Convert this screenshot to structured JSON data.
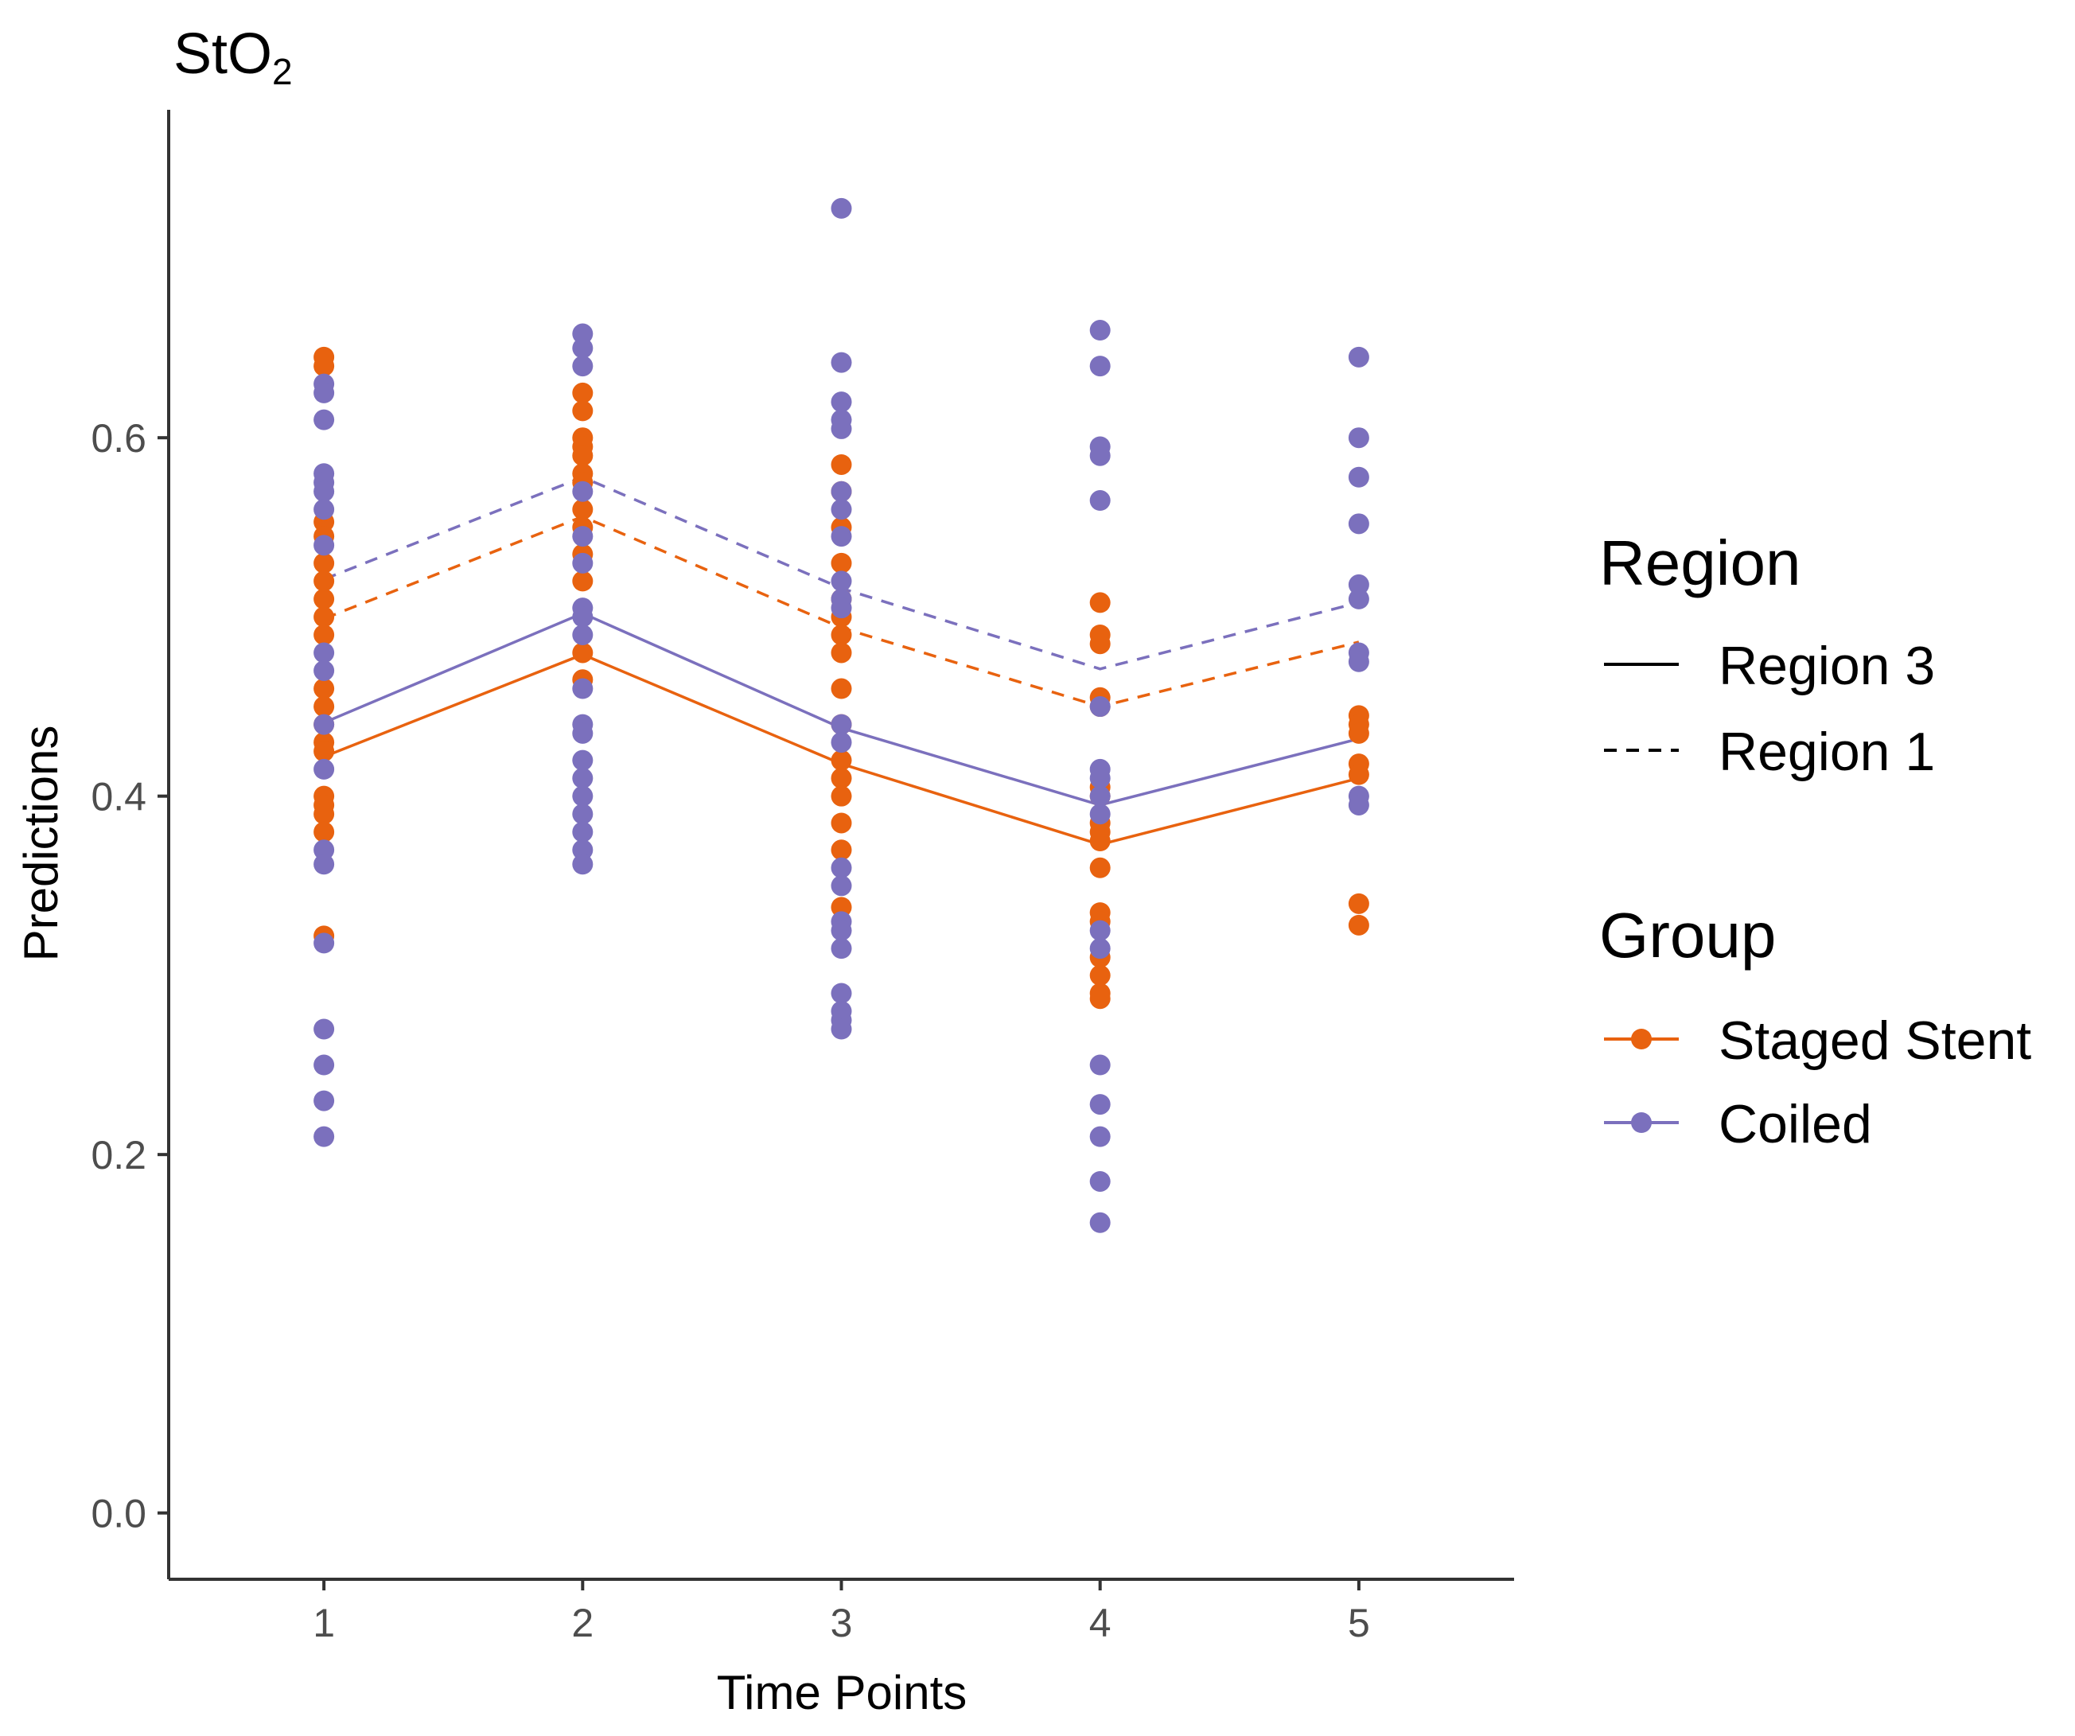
{
  "chart_data": {
    "type": "line",
    "title": "StO",
    "title_subscript": "2",
    "xlabel": "Time Points",
    "ylabel": "Predictions",
    "x": [
      1,
      2,
      3,
      4,
      5
    ],
    "xlim": [
      0.4,
      5.6
    ],
    "ylim": [
      -0.037,
      0.783
    ],
    "yticks": [
      0.0,
      0.2,
      0.4,
      0.6
    ],
    "ytick_labels": [
      "0.0",
      "0.2",
      "0.4",
      "0.6"
    ],
    "xtick_labels": [
      "1",
      "2",
      "3",
      "4",
      "5"
    ],
    "grid": false,
    "colors": {
      "staged_stent": "#e8620f",
      "coiled": "#7b70bd",
      "axis": "#333333"
    },
    "series": [
      {
        "name": "Staged Stent - Region 3",
        "group": "Staged Stent",
        "region": "Region 3",
        "color": "#e8620f",
        "dash": "solid",
        "values": [
          0.422,
          0.479,
          0.418,
          0.373,
          0.41
        ]
      },
      {
        "name": "Coiled - Region 3",
        "group": "Coiled",
        "region": "Region 3",
        "color": "#7b70bd",
        "dash": "solid",
        "values": [
          0.441,
          0.502,
          0.438,
          0.395,
          0.432
        ]
      },
      {
        "name": "Staged Stent - Region 1",
        "group": "Staged Stent",
        "region": "Region 1",
        "color": "#e8620f",
        "dash": "dashed",
        "values": [
          0.499,
          0.556,
          0.494,
          0.45,
          0.486
        ]
      },
      {
        "name": "Coiled - Region 1",
        "group": "Coiled",
        "region": "Region 1",
        "color": "#7b70bd",
        "dash": "dashed",
        "values": [
          0.521,
          0.578,
          0.516,
          0.471,
          0.508
        ]
      }
    ],
    "scatter": [
      {
        "group": "Staged Stent",
        "color": "#e8620f",
        "points": [
          [
            1,
            0.645
          ],
          [
            1,
            0.64
          ],
          [
            1,
            0.553
          ],
          [
            1,
            0.545
          ],
          [
            1,
            0.53
          ],
          [
            1,
            0.52
          ],
          [
            1,
            0.51
          ],
          [
            1,
            0.5
          ],
          [
            1,
            0.49
          ],
          [
            1,
            0.46
          ],
          [
            1,
            0.45
          ],
          [
            1,
            0.44
          ],
          [
            1,
            0.43
          ],
          [
            1,
            0.425
          ],
          [
            1,
            0.4
          ],
          [
            1,
            0.395
          ],
          [
            1,
            0.39
          ],
          [
            1,
            0.38
          ],
          [
            1,
            0.322
          ],
          [
            2,
            0.625
          ],
          [
            2,
            0.615
          ],
          [
            2,
            0.6
          ],
          [
            2,
            0.595
          ],
          [
            2,
            0.59
          ],
          [
            2,
            0.58
          ],
          [
            2,
            0.575
          ],
          [
            2,
            0.56
          ],
          [
            2,
            0.55
          ],
          [
            2,
            0.535
          ],
          [
            2,
            0.52
          ],
          [
            2,
            0.48
          ],
          [
            2,
            0.465
          ],
          [
            3,
            0.585
          ],
          [
            3,
            0.57
          ],
          [
            3,
            0.55
          ],
          [
            3,
            0.53
          ],
          [
            3,
            0.51
          ],
          [
            3,
            0.5
          ],
          [
            3,
            0.49
          ],
          [
            3,
            0.48
          ],
          [
            3,
            0.46
          ],
          [
            3,
            0.44
          ],
          [
            3,
            0.42
          ],
          [
            3,
            0.41
          ],
          [
            3,
            0.4
          ],
          [
            3,
            0.385
          ],
          [
            3,
            0.37
          ],
          [
            3,
            0.338
          ],
          [
            4,
            0.508
          ],
          [
            4,
            0.49
          ],
          [
            4,
            0.485
          ],
          [
            4,
            0.455
          ],
          [
            4,
            0.45
          ],
          [
            4,
            0.405
          ],
          [
            4,
            0.4
          ],
          [
            4,
            0.385
          ],
          [
            4,
            0.38
          ],
          [
            4,
            0.375
          ],
          [
            4,
            0.36
          ],
          [
            4,
            0.335
          ],
          [
            4,
            0.33
          ],
          [
            4,
            0.31
          ],
          [
            4,
            0.3
          ],
          [
            4,
            0.29
          ],
          [
            4,
            0.287
          ],
          [
            5,
            0.445
          ],
          [
            5,
            0.44
          ],
          [
            5,
            0.435
          ],
          [
            5,
            0.418
          ],
          [
            5,
            0.412
          ],
          [
            5,
            0.34
          ],
          [
            5,
            0.328
          ]
        ]
      },
      {
        "group": "Coiled",
        "color": "#7b70bd",
        "points": [
          [
            1,
            0.63
          ],
          [
            1,
            0.625
          ],
          [
            1,
            0.61
          ],
          [
            1,
            0.58
          ],
          [
            1,
            0.575
          ],
          [
            1,
            0.57
          ],
          [
            1,
            0.56
          ],
          [
            1,
            0.54
          ],
          [
            1,
            0.48
          ],
          [
            1,
            0.47
          ],
          [
            1,
            0.44
          ],
          [
            1,
            0.415
          ],
          [
            1,
            0.37
          ],
          [
            1,
            0.362
          ],
          [
            1,
            0.318
          ],
          [
            1,
            0.27
          ],
          [
            1,
            0.25
          ],
          [
            1,
            0.23
          ],
          [
            1,
            0.21
          ],
          [
            2,
            0.658
          ],
          [
            2,
            0.65
          ],
          [
            2,
            0.64
          ],
          [
            2,
            0.57
          ],
          [
            2,
            0.545
          ],
          [
            2,
            0.53
          ],
          [
            2,
            0.505
          ],
          [
            2,
            0.5
          ],
          [
            2,
            0.49
          ],
          [
            2,
            0.46
          ],
          [
            2,
            0.44
          ],
          [
            2,
            0.435
          ],
          [
            2,
            0.42
          ],
          [
            2,
            0.41
          ],
          [
            2,
            0.4
          ],
          [
            2,
            0.39
          ],
          [
            2,
            0.38
          ],
          [
            2,
            0.37
          ],
          [
            2,
            0.362
          ],
          [
            3,
            0.728
          ],
          [
            3,
            0.642
          ],
          [
            3,
            0.62
          ],
          [
            3,
            0.61
          ],
          [
            3,
            0.605
          ],
          [
            3,
            0.57
          ],
          [
            3,
            0.56
          ],
          [
            3,
            0.545
          ],
          [
            3,
            0.52
          ],
          [
            3,
            0.51
          ],
          [
            3,
            0.505
          ],
          [
            3,
            0.44
          ],
          [
            3,
            0.43
          ],
          [
            3,
            0.36
          ],
          [
            3,
            0.35
          ],
          [
            3,
            0.33
          ],
          [
            3,
            0.325
          ],
          [
            3,
            0.315
          ],
          [
            3,
            0.29
          ],
          [
            3,
            0.28
          ],
          [
            3,
            0.275
          ],
          [
            3,
            0.27
          ],
          [
            4,
            0.66
          ],
          [
            4,
            0.64
          ],
          [
            4,
            0.595
          ],
          [
            4,
            0.59
          ],
          [
            4,
            0.565
          ],
          [
            4,
            0.45
          ],
          [
            4,
            0.415
          ],
          [
            4,
            0.41
          ],
          [
            4,
            0.4
          ],
          [
            4,
            0.39
          ],
          [
            4,
            0.325
          ],
          [
            4,
            0.315
          ],
          [
            4,
            0.25
          ],
          [
            4,
            0.228
          ],
          [
            4,
            0.21
          ],
          [
            4,
            0.185
          ],
          [
            4,
            0.162
          ],
          [
            5,
            0.645
          ],
          [
            5,
            0.6
          ],
          [
            5,
            0.578
          ],
          [
            5,
            0.552
          ],
          [
            5,
            0.518
          ],
          [
            5,
            0.51
          ],
          [
            5,
            0.48
          ],
          [
            5,
            0.475
          ],
          [
            5,
            0.4
          ],
          [
            5,
            0.395
          ]
        ]
      }
    ],
    "legends": [
      {
        "title": "Region",
        "entries": [
          {
            "label": "Region 3",
            "line": "solid",
            "color": "#000000",
            "marker": false
          },
          {
            "label": "Region 1",
            "line": "dashed",
            "color": "#000000",
            "marker": false
          }
        ]
      },
      {
        "title": "Group",
        "entries": [
          {
            "label": "Staged Stent",
            "line": "solid",
            "color": "#e8620f",
            "marker": true
          },
          {
            "label": "Coiled",
            "line": "solid",
            "color": "#7b70bd",
            "marker": true
          }
        ]
      }
    ],
    "legend_position": "right"
  }
}
